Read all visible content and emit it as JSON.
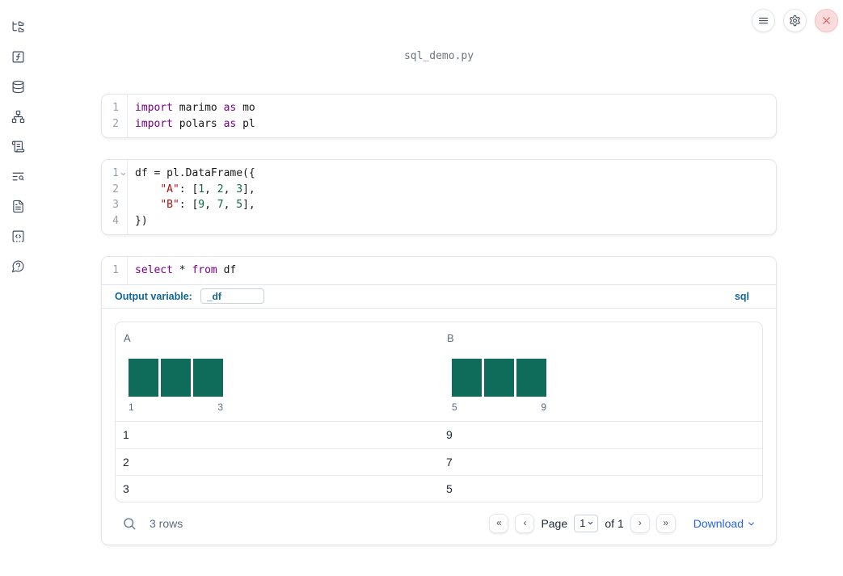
{
  "app": {
    "filename": "sql_demo.py"
  },
  "topbar": {
    "buttons": [
      {
        "id": "menu",
        "icon": "menu"
      },
      {
        "id": "settings",
        "icon": "settings"
      },
      {
        "id": "close",
        "icon": "close",
        "variant": "danger"
      }
    ]
  },
  "sidebar": {
    "items": [
      {
        "id": "file-explorer",
        "icon": "folder-tree"
      },
      {
        "id": "variables",
        "icon": "function-square"
      },
      {
        "id": "data-sources",
        "icon": "database"
      },
      {
        "id": "dependency-graph",
        "icon": "network"
      },
      {
        "id": "scratchpad",
        "icon": "scroll-text"
      },
      {
        "id": "logs",
        "icon": "text-search"
      },
      {
        "id": "documentation",
        "icon": "file-text"
      },
      {
        "id": "snippets",
        "icon": "code-square"
      },
      {
        "id": "help",
        "icon": "help-circle"
      }
    ]
  },
  "colors": {
    "accent_blue": "#116596",
    "link_blue": "#2563eb",
    "histogram_teal": "#0f6c5a",
    "keyword_purple": "#770088",
    "string_red": "#aa1111",
    "number_green": "#116644",
    "danger_red": "#dd5252",
    "border_gray": "#e2e6ea",
    "muted_gray": "#5f6b7c"
  },
  "cells": [
    {
      "lines": [
        {
          "n": "1",
          "tokens": [
            {
              "c": "kw",
              "t": "import"
            },
            {
              "c": "pl",
              "t": " marimo "
            },
            {
              "c": "kw",
              "t": "as"
            },
            {
              "c": "pl",
              "t": " mo"
            }
          ]
        },
        {
          "n": "2",
          "tokens": [
            {
              "c": "kw",
              "t": "import"
            },
            {
              "c": "pl",
              "t": " polars "
            },
            {
              "c": "kw",
              "t": "as"
            },
            {
              "c": "pl",
              "t": " pl"
            }
          ]
        }
      ]
    },
    {
      "lines": [
        {
          "n": "1",
          "fold": true,
          "tokens": [
            {
              "c": "pl",
              "t": "df = pl.DataFrame({"
            }
          ]
        },
        {
          "n": "2",
          "tokens": [
            {
              "c": "pl",
              "t": "    "
            },
            {
              "c": "str",
              "t": "\"A\""
            },
            {
              "c": "pl",
              "t": ": ["
            },
            {
              "c": "num",
              "t": "1"
            },
            {
              "c": "pl",
              "t": ", "
            },
            {
              "c": "num",
              "t": "2"
            },
            {
              "c": "pl",
              "t": ", "
            },
            {
              "c": "num",
              "t": "3"
            },
            {
              "c": "pl",
              "t": "],"
            }
          ]
        },
        {
          "n": "3",
          "tokens": [
            {
              "c": "pl",
              "t": "    "
            },
            {
              "c": "str",
              "t": "\"B\""
            },
            {
              "c": "pl",
              "t": ": ["
            },
            {
              "c": "num",
              "t": "9"
            },
            {
              "c": "pl",
              "t": ", "
            },
            {
              "c": "num",
              "t": "7"
            },
            {
              "c": "pl",
              "t": ", "
            },
            {
              "c": "num",
              "t": "5"
            },
            {
              "c": "pl",
              "t": "],"
            }
          ]
        },
        {
          "n": "4",
          "tokens": [
            {
              "c": "pl",
              "t": "})"
            }
          ]
        }
      ]
    },
    {
      "lines": [
        {
          "n": "1",
          "tokens": [
            {
              "c": "kw",
              "t": "select"
            },
            {
              "c": "pl",
              "t": " * "
            },
            {
              "c": "kw",
              "t": "from"
            },
            {
              "c": "pl",
              "t": " df"
            }
          ]
        }
      ],
      "output_variable_label": "Output variable:",
      "output_variable_value": "_df",
      "language_badge": "sql"
    }
  ],
  "table": {
    "columns": [
      {
        "label": "A",
        "hist": {
          "values": [
            1,
            1,
            1
          ],
          "min_label": "1",
          "max_label": "3"
        }
      },
      {
        "label": "B",
        "hist": {
          "values": [
            1,
            1,
            1
          ],
          "min_label": "5",
          "max_label": "9"
        }
      }
    ],
    "rows": [
      [
        "1",
        "9"
      ],
      [
        "2",
        "7"
      ],
      [
        "3",
        "5"
      ]
    ],
    "footer": {
      "row_count": "3 rows",
      "page_label": "Page",
      "page_value": "1",
      "of_label": "of 1",
      "download_label": "Download",
      "pager_buttons_before": [
        {
          "id": "first-page",
          "glyph": "«"
        },
        {
          "id": "prev-page",
          "glyph": "‹"
        }
      ],
      "pager_buttons_after": [
        {
          "id": "next-page",
          "glyph": "›"
        },
        {
          "id": "last-page",
          "glyph": "»"
        }
      ]
    }
  }
}
